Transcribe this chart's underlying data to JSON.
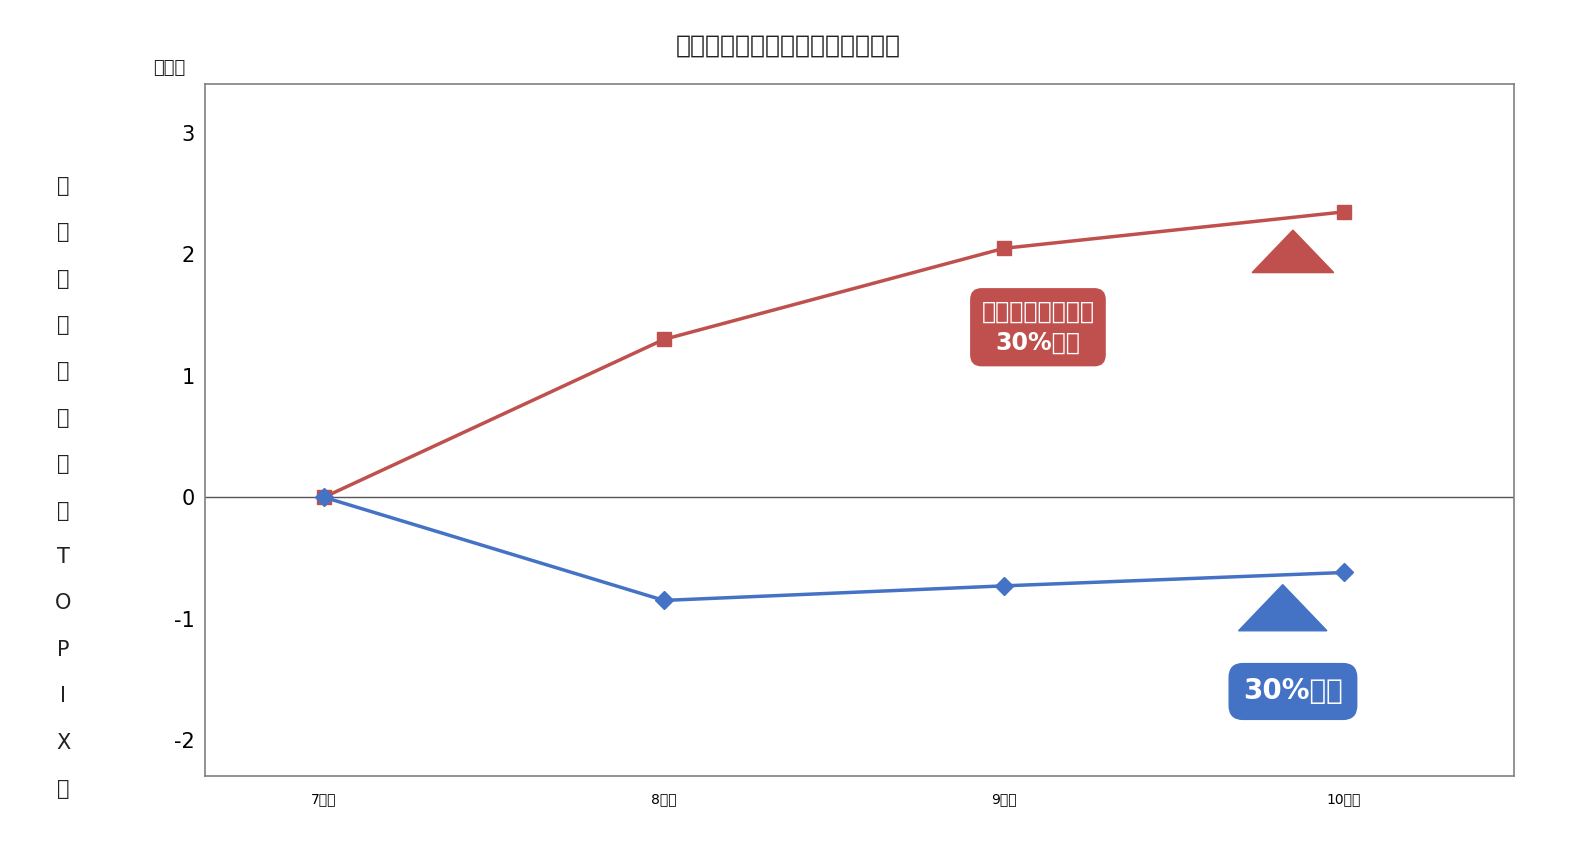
{
  "title": "しっかり稼ぐ企業を市場は高評価",
  "title_fontsize": 18,
  "x_labels": [
    "7月末",
    "8月末",
    "9月末",
    "10月末"
  ],
  "x_values": [
    0,
    1,
    2,
    3
  ],
  "red_series": [
    0.0,
    1.3,
    2.05,
    2.35
  ],
  "blue_series": [
    0.0,
    -0.85,
    -0.73,
    -0.62
  ],
  "red_color": "#C0504D",
  "blue_color": "#4472C4",
  "ylabel_chars": [
    "累",
    "積",
    "リ",
    "タ",
    "ー",
    "ン",
    "（",
    "対",
    "T",
    "O",
    "P",
    "I",
    "X",
    "）"
  ],
  "pct_label": "（％）",
  "ylim": [
    -2.3,
    3.4
  ],
  "yticks": [
    -2,
    -1,
    0,
    1,
    2,
    3
  ],
  "background_color": "#FFFFFF",
  "border_color": "#808080",
  "annotation_red_line1": "経常利益の進捗率",
  "annotation_red_line2": "30%以上",
  "annotation_blue": "30%未満",
  "annotation_fontsize": 17,
  "annotation_fontsize_blue": 20,
  "tick_fontsize": 15,
  "ylabel_fontsize": 15,
  "pct_fontsize": 13
}
